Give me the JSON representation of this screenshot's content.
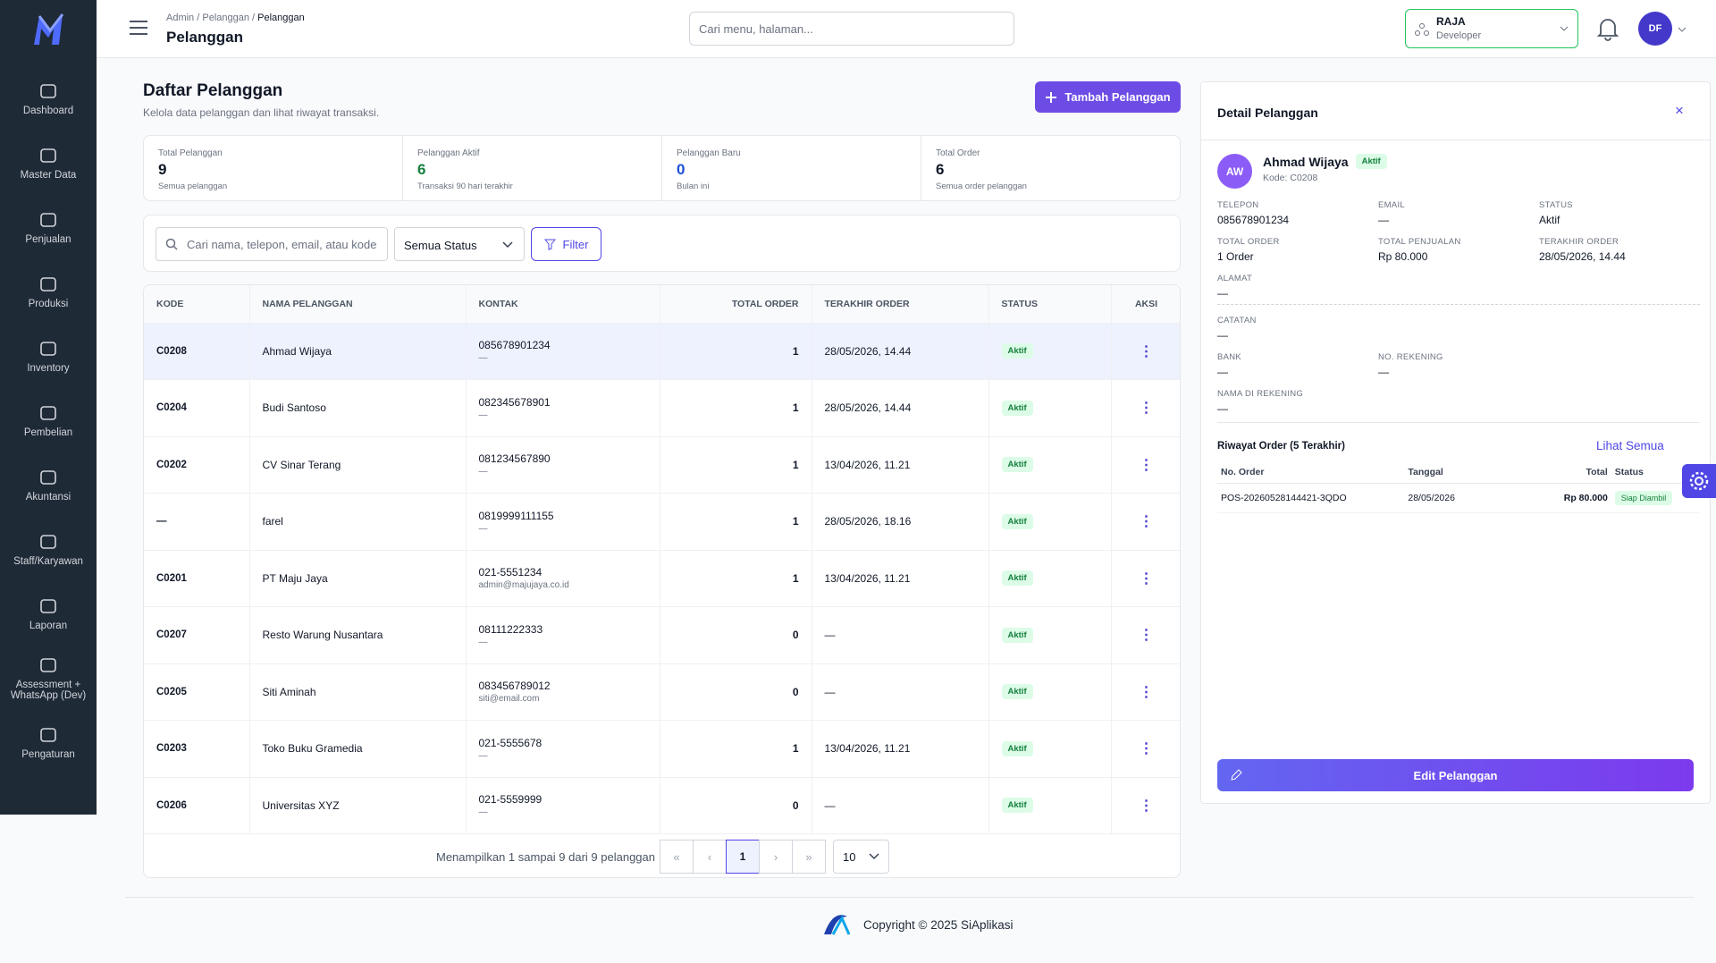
{
  "sidebar": {
    "items": [
      "Dashboard",
      "Master Data",
      "Penjualan",
      "Produksi",
      "Inventory",
      "Pembelian",
      "Akuntansi",
      "Staff/Karyawan",
      "Laporan",
      "Assessment + WhatsApp (Dev)",
      "Pengaturan"
    ]
  },
  "header": {
    "breadcrumb": [
      "Admin",
      "Pelanggan",
      "Pelanggan"
    ],
    "title": "Pelanggan",
    "search_placeholder": "Cari menu, halaman...",
    "org": {
      "name": "RAJA",
      "role": "Developer"
    },
    "avatar": "DF"
  },
  "page": {
    "title": "Daftar Pelanggan",
    "subtitle": "Kelola data pelanggan dan lihat riwayat transaksi.",
    "add_button": "Tambah Pelanggan"
  },
  "stats": [
    {
      "label": "Total Pelanggan",
      "value": 9,
      "note": "Semua pelanggan"
    },
    {
      "label": "Pelanggan Aktif",
      "value": 6,
      "note": "Transaksi 90 hari terakhir"
    },
    {
      "label": "Pelanggan Baru",
      "value": 0,
      "note": "Bulan ini"
    },
    {
      "label": "Total Order",
      "value": 6,
      "note": "Semua order pelanggan"
    }
  ],
  "filters": {
    "search_placeholder": "Cari nama, telepon, email, atau kode",
    "status": "Semua Status",
    "button": "Filter"
  },
  "table": {
    "columns": [
      "KODE",
      "NAMA PELANGGAN",
      "KONTAK",
      "TOTAL ORDER",
      "TERAKHIR ORDER",
      "STATUS",
      "AKSI"
    ],
    "rows": [
      {
        "code": "C0208",
        "name": "Ahmad Wijaya",
        "phone": "085678901234",
        "email": "—",
        "orders": 1,
        "last_order": "28/05/2026, 14.44",
        "status": "Aktif"
      },
      {
        "code": "C0204",
        "name": "Budi Santoso",
        "phone": "082345678901",
        "email": "—",
        "orders": 1,
        "last_order": "28/05/2026, 14.44",
        "status": "Aktif"
      },
      {
        "code": "C0202",
        "name": "CV Sinar Terang",
        "phone": "081234567890",
        "email": "—",
        "orders": 1,
        "last_order": "13/04/2026, 11.21",
        "status": "Aktif"
      },
      {
        "code": "—",
        "name": "farel",
        "phone": "0819999111155",
        "email": "—",
        "orders": 1,
        "last_order": "28/05/2026, 18.16",
        "status": "Aktif"
      },
      {
        "code": "C0201",
        "name": "PT Maju Jaya",
        "phone": "021-5551234",
        "email": "admin@majujaya.co.id",
        "orders": 1,
        "last_order": "13/04/2026, 11.21",
        "status": "Aktif"
      },
      {
        "code": "C0207",
        "name": "Resto Warung Nusantara",
        "phone": "08111222333",
        "email": "—",
        "orders": 0,
        "last_order": "—",
        "status": "Aktif"
      },
      {
        "code": "C0205",
        "name": "Siti Aminah",
        "phone": "083456789012",
        "email": "siti@email.com",
        "orders": 0,
        "last_order": "—",
        "status": "Aktif"
      },
      {
        "code": "C0203",
        "name": "Toko Buku Gramedia",
        "phone": "021-5555678",
        "email": "—",
        "orders": 1,
        "last_order": "13/04/2026, 11.21",
        "status": "Aktif"
      },
      {
        "code": "C0206",
        "name": "Universitas XYZ",
        "phone": "021-5559999",
        "email": "—",
        "orders": 0,
        "last_order": "—",
        "status": "Aktif"
      }
    ]
  },
  "pagination": {
    "summary": "Menampilkan 1 sampai 9 dari 9 pelanggan",
    "page": 1,
    "page_size": 10
  },
  "detail": {
    "title": "Detail Pelanggan",
    "initials": "AW",
    "name": "Ahmad Wijaya",
    "badge": "Aktif",
    "code": "Kode: C0208",
    "fields": [
      {
        "label": "TELEPON",
        "value": "085678901234"
      },
      {
        "label": "EMAIL",
        "value": "—"
      },
      {
        "label": "STATUS",
        "value": "Aktif"
      },
      {
        "label": "TOTAL ORDER",
        "value": "1 Order"
      },
      {
        "label": "TOTAL PENJUALAN",
        "value": "Rp 80.000"
      },
      {
        "label": "TERAKHIR ORDER",
        "value": "28/05/2026, 14.44"
      },
      {
        "label": "ALAMAT",
        "value": "—"
      }
    ],
    "extra_fields": [
      {
        "label": "CATATAN",
        "value": "—"
      },
      {
        "label": "BANK",
        "value": "—"
      },
      {
        "label": "NO. REKENING",
        "value": "—"
      },
      {
        "label": "NAMA DI REKENING",
        "value": "—"
      }
    ],
    "history": {
      "title": "Riwayat Order (5 Terakhir)",
      "link": "Lihat Semua",
      "columns": [
        "No. Order",
        "Tanggal",
        "Total",
        "Status"
      ],
      "rows": [
        {
          "order": "POS-20260528144421-3QDO",
          "date": "28/05/2026",
          "total": "Rp 80.000",
          "status": "Siap Diambil"
        }
      ]
    },
    "edit_button": "Edit Pelanggan"
  },
  "footer": {
    "copyright": "Copyright © 2025 SiAplikasi"
  }
}
